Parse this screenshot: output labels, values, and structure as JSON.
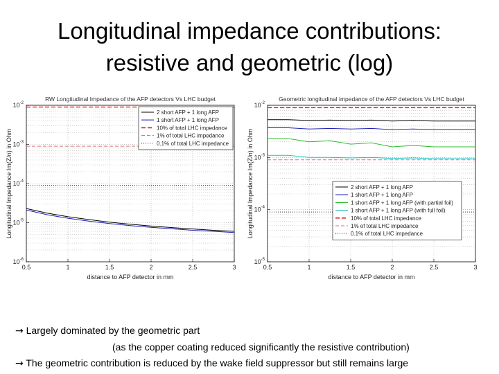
{
  "slide": {
    "title_line1": "Longitudinal impedance contributions:",
    "title_line2": "resistive and geometric (log)",
    "bullets": [
      {
        "arrow": "→",
        "text": "Largely dominated by the geometric part"
      },
      {
        "arrow": "",
        "text": "(as the copper coating reduced significantly the resistive  contribution)"
      },
      {
        "arrow": "→",
        "text": "The geometric contribution is reduced by the wake field suppressor but still remains large"
      }
    ]
  },
  "chart_data": [
    {
      "type": "line",
      "title": "RW Longitudinal Impedance of the AFP detectors Vs LHC budget",
      "xlabel": "distance to AFP detector in mm",
      "ylabel": "Longitudinal Impedance  Im(Z/n) in Ohm",
      "y_scale": "log",
      "xlim": [
        0.5,
        3
      ],
      "ylim": [
        1e-06,
        0.01
      ],
      "x_ticks": [
        "0.5",
        "1",
        "1.5",
        "2",
        "2.5",
        "3"
      ],
      "y_ticks": [
        {
          "value": 0.01,
          "base": "10",
          "exp": "-2"
        },
        {
          "value": 0.001,
          "base": "10",
          "exp": "-3"
        },
        {
          "value": 0.0001,
          "base": "10",
          "exp": "-4"
        },
        {
          "value": 1e-05,
          "base": "10",
          "exp": "-5"
        },
        {
          "value": 1e-06,
          "base": "10",
          "exp": "-6"
        }
      ],
      "grid": true,
      "legend_position": "top-right",
      "series": [
        {
          "name": "2 short AFP + 1 long AFP",
          "color": "#000000",
          "dash": "solid",
          "x": [
            0.5,
            0.75,
            1.0,
            1.25,
            1.5,
            1.75,
            2.0,
            2.25,
            2.5,
            2.75,
            3.0
          ],
          "y": [
            2.3e-05,
            1.75e-05,
            1.42e-05,
            1.2e-05,
            1.03e-05,
            9.1e-06,
            8.2e-06,
            7.5e-06,
            6.9e-06,
            6.4e-06,
            6e-06
          ]
        },
        {
          "name": "1 short AFP + 1 long AFP",
          "color": "#1f1fb4",
          "dash": "solid",
          "x": [
            0.5,
            0.75,
            1.0,
            1.25,
            1.5,
            1.75,
            2.0,
            2.25,
            2.5,
            2.75,
            3.0
          ],
          "y": [
            2.1e-05,
            1.6e-05,
            1.3e-05,
            1.1e-05,
            9.5e-06,
            8.4e-06,
            7.6e-06,
            7e-06,
            6.4e-06,
            6e-06,
            5.6e-06
          ]
        },
        {
          "name": "10% of total LHC impedance",
          "color": "#e02020",
          "dash": "6,3",
          "x": [
            0.5,
            3.0
          ],
          "y": [
            0.009,
            0.009
          ]
        },
        {
          "name": "1% of total LHC impedance",
          "color": "#e07070",
          "dash": "5,3",
          "x": [
            0.5,
            3.0
          ],
          "y": [
            0.0009,
            0.0009
          ]
        },
        {
          "name": "0.1% of total LHC impedance",
          "color": "#333333",
          "dash": "1,2",
          "x": [
            0.5,
            3.0
          ],
          "y": [
            9e-05,
            9e-05
          ]
        }
      ]
    },
    {
      "type": "line",
      "title": "Geometric longitudinal impedance of the AFP detectors Vs LHC budget",
      "xlabel": "distance to AFP detector in mm",
      "ylabel": "Longitudinal Impedance  Im(Z/n) in Ohm",
      "y_scale": "log",
      "xlim": [
        0.5,
        3
      ],
      "ylim": [
        1e-05,
        0.01
      ],
      "x_ticks": [
        "0.5",
        "1",
        "1.5",
        "2",
        "2.5",
        "3"
      ],
      "y_ticks": [
        {
          "value": 0.01,
          "base": "10",
          "exp": "-2"
        },
        {
          "value": 0.001,
          "base": "10",
          "exp": "-3"
        },
        {
          "value": 0.0001,
          "base": "10",
          "exp": "-4"
        },
        {
          "value": 1e-05,
          "base": "10",
          "exp": "-5"
        }
      ],
      "grid": true,
      "legend_position": "bottom-right",
      "series": [
        {
          "name": "2 short AFP + 1 long AFP",
          "color": "#000000",
          "dash": "solid",
          "x": [
            0.5,
            0.75,
            1.0,
            1.25,
            1.5,
            1.75,
            2.0,
            2.25,
            2.5,
            2.75,
            3.0
          ],
          "y": [
            0.0053,
            0.0053,
            0.0051,
            0.0052,
            0.0051,
            0.0052,
            0.005,
            0.0051,
            0.005,
            0.005,
            0.005
          ]
        },
        {
          "name": "1 short AFP + 1 long AFP",
          "color": "#1f1fb4",
          "dash": "solid",
          "x": [
            0.5,
            0.75,
            1.0,
            1.25,
            1.5,
            1.75,
            2.0,
            2.25,
            2.5,
            2.75,
            3.0
          ],
          "y": [
            0.0037,
            0.0037,
            0.0035,
            0.0036,
            0.0035,
            0.0036,
            0.0034,
            0.0035,
            0.0034,
            0.0034,
            0.0034
          ]
        },
        {
          "name": "1 short AFP + 1 long AFP (with partial foil)",
          "color": "#2bbf2b",
          "dash": "solid",
          "x": [
            0.5,
            0.75,
            1.0,
            1.25,
            1.5,
            1.75,
            2.0,
            2.25,
            2.5,
            2.75,
            3.0
          ],
          "y": [
            0.0023,
            0.0023,
            0.002,
            0.0021,
            0.0018,
            0.0019,
            0.0016,
            0.0017,
            0.0016,
            0.0016,
            0.0016
          ]
        },
        {
          "name": "1 short AFP + 1 long AFP (with full foil)",
          "color": "#20c0c0",
          "dash": "solid",
          "x": [
            0.5,
            0.75,
            1.0,
            1.25,
            1.5,
            1.75,
            2.0,
            2.25,
            2.5,
            2.75,
            3.0
          ],
          "y": [
            0.0011,
            0.0011,
            0.001,
            0.001,
            0.00098,
            0.001,
            0.00096,
            0.00098,
            0.00095,
            0.00095,
            0.00095
          ]
        },
        {
          "name": "10% of total LHC impedance",
          "color": "#e02020",
          "dash": "6,3",
          "x": [
            0.5,
            3.0
          ],
          "y": [
            0.009,
            0.009
          ]
        },
        {
          "name": "1% of total LHC impedance",
          "color": "#e07070",
          "dash": "5,3",
          "x": [
            0.5,
            3.0
          ],
          "y": [
            0.0009,
            0.0009
          ]
        },
        {
          "name": "0.1% of total LHC impedance",
          "color": "#333333",
          "dash": "1,2",
          "x": [
            0.5,
            3.0
          ],
          "y": [
            9e-05,
            9e-05
          ]
        }
      ]
    }
  ]
}
